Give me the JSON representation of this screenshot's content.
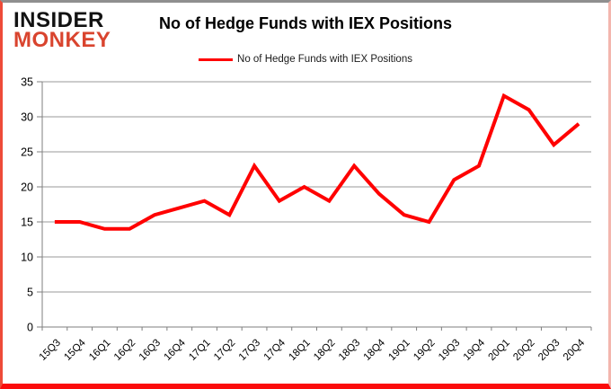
{
  "header": {
    "logo_line1": "INSIDER",
    "logo_line2": "MONKEY",
    "title": "No of Hedge Funds with IEX Positions",
    "legend_label": "No of Hedge Funds with IEX Positions"
  },
  "colors": {
    "line": "#ff0000",
    "grid": "#9a9a9a",
    "axis": "#7f7f7f",
    "logo_black": "#121212",
    "logo_red": "#d9442e"
  },
  "chart_data": {
    "type": "line",
    "title": "No of Hedge Funds with IEX Positions",
    "legend": [
      "No of Hedge Funds with IEX Positions"
    ],
    "categories": [
      "15Q3",
      "15Q4",
      "16Q1",
      "16Q2",
      "16Q3",
      "16Q4",
      "17Q1",
      "17Q2",
      "17Q3",
      "17Q4",
      "18Q1",
      "18Q2",
      "18Q3",
      "18Q4",
      "19Q1",
      "19Q2",
      "19Q3",
      "19Q4",
      "20Q1",
      "20Q2",
      "20Q3",
      "20Q4"
    ],
    "values": [
      15,
      15,
      14,
      14,
      16,
      17,
      18,
      16,
      23,
      18,
      20,
      18,
      23,
      19,
      16,
      15,
      21,
      23,
      33,
      31,
      26,
      29
    ],
    "xlabel": "",
    "ylabel": "",
    "ylim": [
      0,
      35
    ],
    "yticks": [
      0,
      5,
      10,
      15,
      20,
      25,
      30,
      35
    ],
    "grid": true,
    "legend_position": "top-center"
  }
}
